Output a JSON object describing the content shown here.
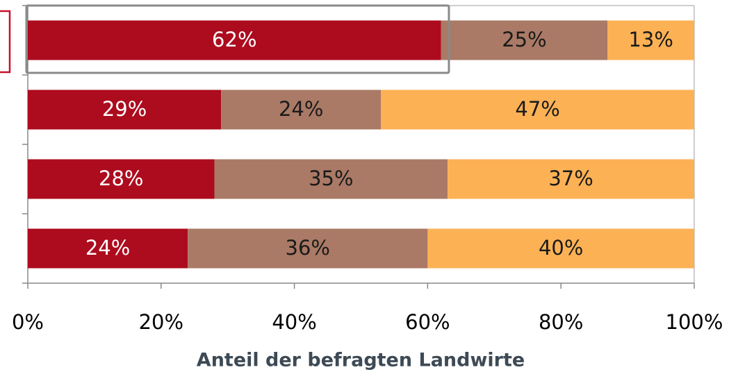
{
  "chart_data": {
    "type": "stacked-bar-horizontal",
    "x_label": "Anteil der befragten Landwirte",
    "categories": [
      null,
      null,
      null,
      null
    ],
    "series": [
      {
        "color": "#ad0b1e",
        "values": [
          62,
          29,
          28,
          24
        ],
        "value_labels": [
          "62%",
          "29%",
          "28%",
          "24%"
        ]
      },
      {
        "color": "#aa7a66",
        "values": [
          25,
          24,
          35,
          36
        ],
        "value_labels": [
          "25%",
          "24%",
          "35%",
          "36%"
        ]
      },
      {
        "color": "#fcb155",
        "values": [
          13,
          47,
          37,
          40
        ],
        "value_labels": [
          "13%",
          "47%",
          "37%",
          "40%"
        ]
      }
    ],
    "xlim": [
      0,
      100
    ],
    "xticks": [
      {
        "value": 0,
        "label": "0%"
      },
      {
        "value": 20,
        "label": "20%"
      },
      {
        "value": 40,
        "label": "40%"
      },
      {
        "value": 60,
        "label": "60%"
      },
      {
        "value": 80,
        "label": "80%"
      },
      {
        "value": 100,
        "label": "100%"
      }
    ]
  }
}
